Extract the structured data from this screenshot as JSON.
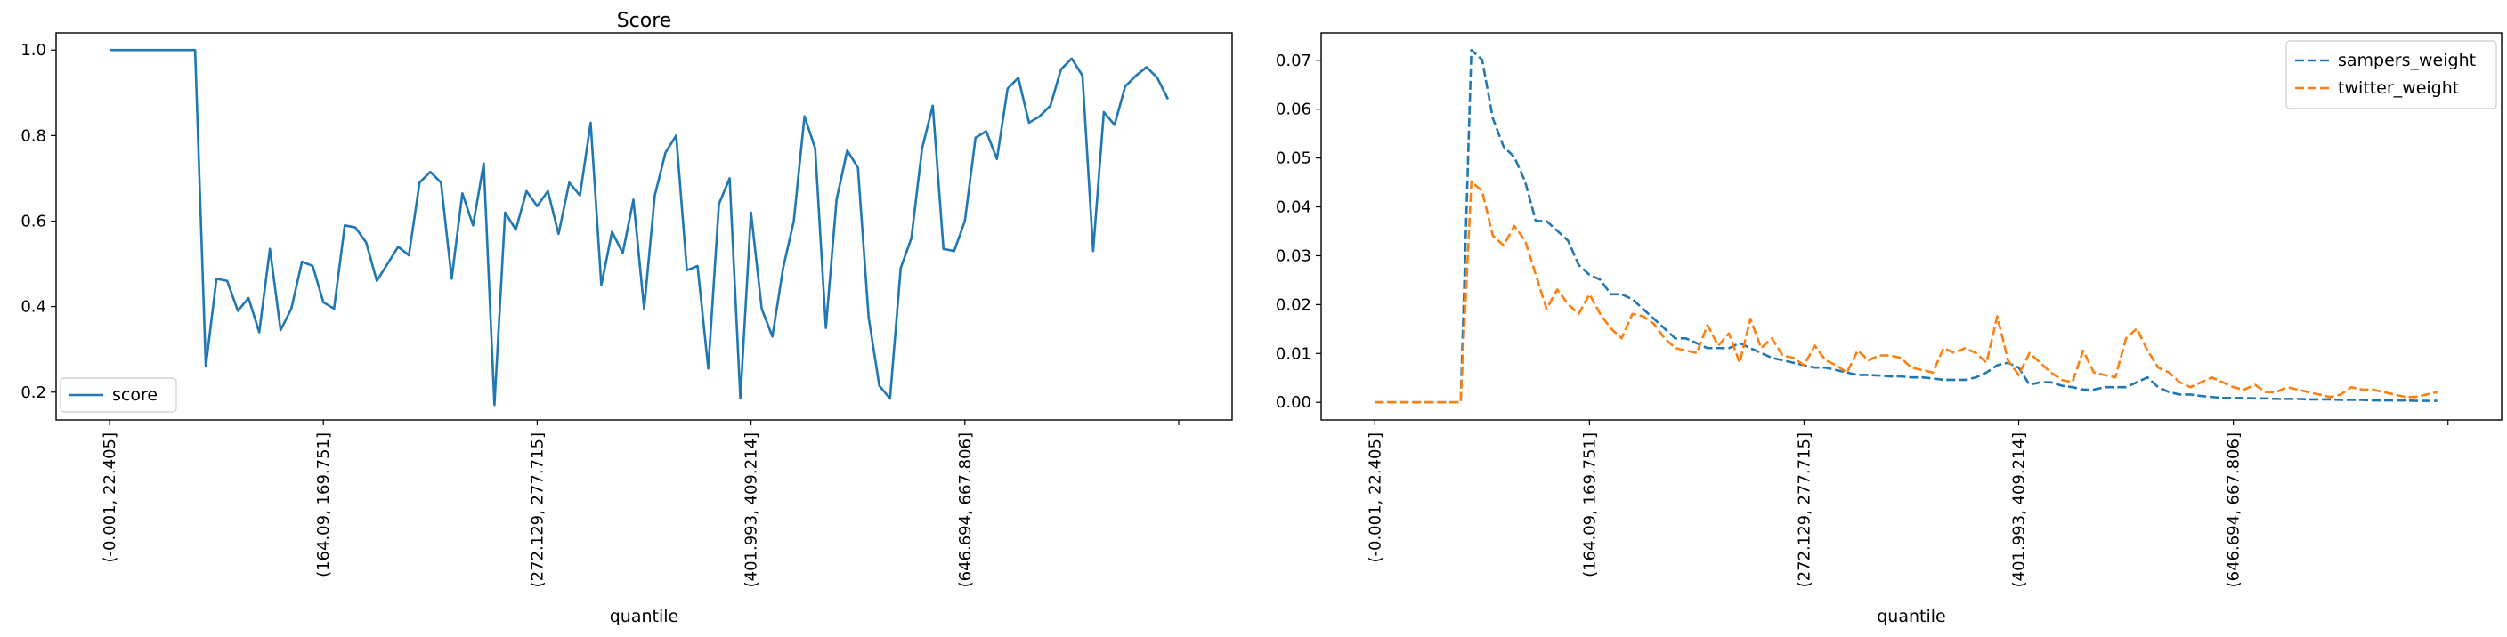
{
  "chart_data": [
    {
      "type": "line",
      "title": "Score",
      "xlabel": "",
      "ylabel": "",
      "ylim": [
        0.135,
        1.04
      ],
      "yticks": [
        0.2,
        0.4,
        0.6,
        0.8,
        1.0
      ],
      "ytick_labels": [
        "0.2",
        "0.4",
        "0.6",
        "0.8",
        "1.0"
      ],
      "xlim": [
        -5,
        105
      ],
      "xticks": [
        0,
        20,
        40,
        60,
        80,
        100
      ],
      "xtick_labels": [
        "(-0.001, 22.405]",
        "(164.09, 169.751]",
        "(272.129, 277.715]",
        "(401.993, 409.214]",
        "(646.694, 667.806]",
        ""
      ],
      "legend": {
        "position": "lower-left"
      },
      "series": [
        {
          "name": "score",
          "color": "#1f77b4",
          "style": "solid",
          "values": [
            1.0,
            1.0,
            1.0,
            1.0,
            1.0,
            1.0,
            1.0,
            1.0,
            1.0,
            0.26,
            0.465,
            0.46,
            0.39,
            0.42,
            0.34,
            0.535,
            0.345,
            0.395,
            0.505,
            0.495,
            0.41,
            0.395,
            0.59,
            0.585,
            0.55,
            0.46,
            0.5,
            0.54,
            0.52,
            0.69,
            0.715,
            0.69,
            0.465,
            0.665,
            0.59,
            0.735,
            0.17,
            0.62,
            0.58,
            0.67,
            0.635,
            0.67,
            0.57,
            0.69,
            0.66,
            0.83,
            0.45,
            0.575,
            0.525,
            0.65,
            0.395,
            0.66,
            0.76,
            0.8,
            0.485,
            0.495,
            0.255,
            0.64,
            0.7,
            0.185,
            0.62,
            0.395,
            0.33,
            0.49,
            0.6,
            0.845,
            0.77,
            0.35,
            0.65,
            0.765,
            0.725,
            0.375,
            0.215,
            0.185,
            0.49,
            0.56,
            0.77,
            0.87,
            0.535,
            0.53,
            0.6,
            0.795,
            0.81,
            0.745,
            0.91,
            0.935,
            0.83,
            0.845,
            0.87,
            0.955,
            0.98,
            0.94,
            0.53,
            0.855,
            0.825,
            0.915,
            0.94,
            0.96,
            0.935,
            0.885
          ]
        }
      ]
    },
    {
      "type": "line",
      "title": "",
      "xlabel": "quantile",
      "ylabel": "",
      "ylim": [
        -0.0036,
        0.0756
      ],
      "yticks": [
        0.0,
        0.01,
        0.02,
        0.03,
        0.04,
        0.05,
        0.06,
        0.07
      ],
      "ytick_labels": [
        "0.00",
        "0.01",
        "0.02",
        "0.03",
        "0.04",
        "0.05",
        "0.06",
        "0.07"
      ],
      "xlim": [
        -5,
        105
      ],
      "xticks": [
        0,
        20,
        40,
        60,
        80,
        100
      ],
      "xtick_labels": [
        "(-0.001, 22.405]",
        "(164.09, 169.751]",
        "(272.129, 277.715]",
        "(401.993, 409.214]",
        "(646.694, 667.806]",
        ""
      ],
      "legend": {
        "position": "upper-right"
      },
      "series": [
        {
          "name": "sampers_weight",
          "color": "#1f77b4",
          "style": "dashed",
          "values": [
            0.0,
            0.0,
            0.0,
            0.0,
            0.0,
            0.0,
            0.0,
            0.0,
            0.0,
            0.0721,
            0.0701,
            0.0581,
            0.0523,
            0.0502,
            0.0452,
            0.0371,
            0.0371,
            0.0351,
            0.0331,
            0.0281,
            0.0261,
            0.0251,
            0.0221,
            0.0221,
            0.0211,
            0.0191,
            0.0171,
            0.0151,
            0.0131,
            0.0131,
            0.0121,
            0.0111,
            0.0111,
            0.0111,
            0.0121,
            0.0111,
            0.0101,
            0.0091,
            0.0086,
            0.0081,
            0.0076,
            0.0071,
            0.0071,
            0.0066,
            0.0061,
            0.0056,
            0.0056,
            0.0055,
            0.0053,
            0.0053,
            0.0051,
            0.0051,
            0.0049,
            0.0046,
            0.0046,
            0.0046,
            0.0051,
            0.0061,
            0.0076,
            0.0081,
            0.0071,
            0.0036,
            0.0041,
            0.0041,
            0.0034,
            0.0031,
            0.0026,
            0.0026,
            0.0031,
            0.0031,
            0.0031,
            0.0041,
            0.0051,
            0.0031,
            0.0021,
            0.0016,
            0.0016,
            0.0013,
            0.0011,
            0.0009,
            0.0009,
            0.0009,
            0.0008,
            0.0008,
            0.0007,
            0.0007,
            0.0007,
            0.0006,
            0.0006,
            0.0006,
            0.0005,
            0.0005,
            0.0005,
            0.0004,
            0.0004,
            0.0004,
            0.0004,
            0.0003,
            0.0003,
            0.0003
          ]
        },
        {
          "name": "twitter_weight",
          "color": "#ff7f0e",
          "style": "dashed",
          "values": [
            0.0,
            0.0,
            0.0,
            0.0,
            0.0,
            0.0,
            0.0,
            0.0,
            0.0,
            0.0452,
            0.0432,
            0.0341,
            0.0321,
            0.0361,
            0.0331,
            0.0261,
            0.0191,
            0.0231,
            0.0201,
            0.0181,
            0.0221,
            0.0181,
            0.0151,
            0.0131,
            0.0181,
            0.0176,
            0.0161,
            0.0131,
            0.0111,
            0.0106,
            0.0101,
            0.0158,
            0.0116,
            0.0141,
            0.0081,
            0.0171,
            0.0111,
            0.0131,
            0.0096,
            0.0091,
            0.0076,
            0.0116,
            0.0086,
            0.0076,
            0.0061,
            0.0106,
            0.0086,
            0.0096,
            0.0096,
            0.0091,
            0.0071,
            0.0066,
            0.0061,
            0.0111,
            0.0101,
            0.0111,
            0.0101,
            0.0081,
            0.0176,
            0.0086,
            0.0056,
            0.0101,
            0.0081,
            0.0061,
            0.0046,
            0.0041,
            0.0106,
            0.0061,
            0.0056,
            0.0051,
            0.0131,
            0.0151,
            0.0106,
            0.0071,
            0.0061,
            0.0041,
            0.0031,
            0.0041,
            0.0051,
            0.0041,
            0.0031,
            0.0026,
            0.0036,
            0.0021,
            0.0021,
            0.0031,
            0.0026,
            0.0021,
            0.0016,
            0.0011,
            0.0016,
            0.0031,
            0.0026,
            0.0026,
            0.0021,
            0.0016,
            0.0011,
            0.0011,
            0.0016,
            0.0021
          ]
        }
      ]
    }
  ]
}
